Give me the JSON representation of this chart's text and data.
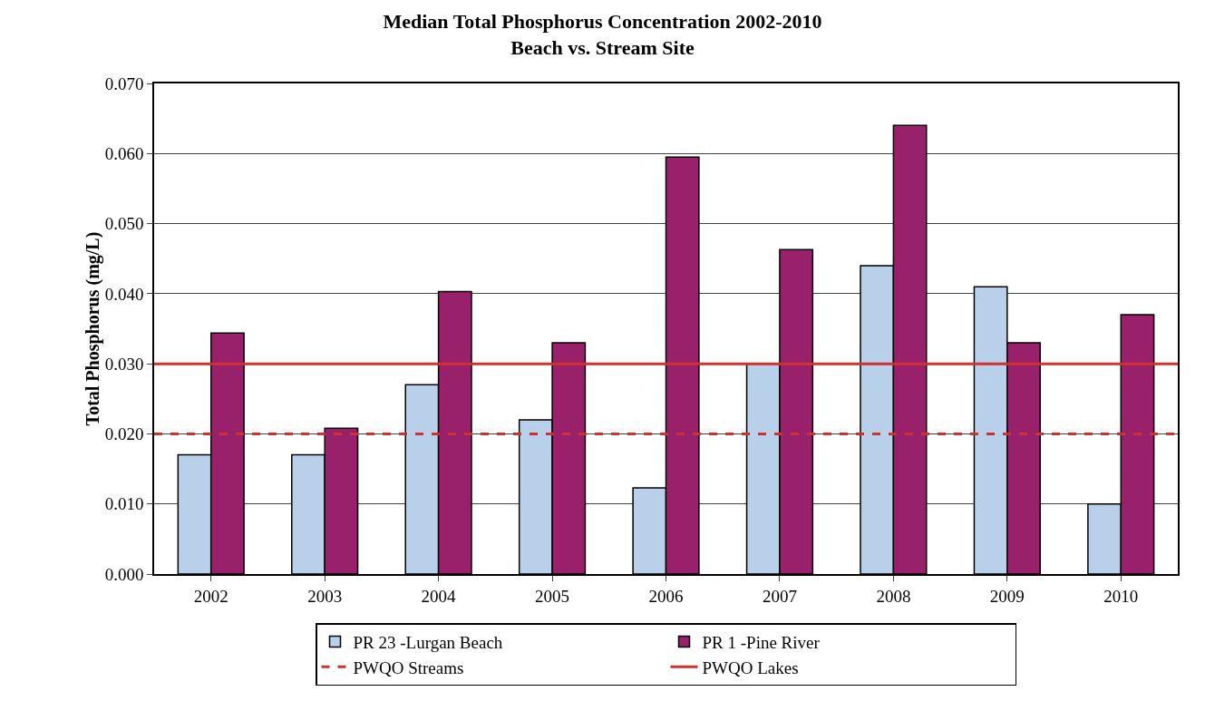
{
  "chart_data": {
    "type": "bar",
    "title": "Median Total Phosphorus Concentration 2002-2010\nBeach vs. Stream Site",
    "ylabel": "Total Phosphorus (mg/L)",
    "categories": [
      "2002",
      "2003",
      "2004",
      "2005",
      "2006",
      "2007",
      "2008",
      "2009",
      "2010"
    ],
    "series": [
      {
        "name": "PR 23 -Lurgan Beach",
        "color": "#b8d0ea",
        "values": [
          0.017,
          0.017,
          0.027,
          0.022,
          0.0123,
          0.03,
          0.044,
          0.041,
          0.01
        ]
      },
      {
        "name": "PR 1 -Pine River",
        "color": "#99206a",
        "values": [
          0.0344,
          0.0208,
          0.0403,
          0.033,
          0.0595,
          0.0463,
          0.064,
          0.033,
          0.037
        ]
      }
    ],
    "ref_lines": [
      {
        "axis": "y",
        "value": 0.02,
        "label": "PWQO Streams",
        "color": "#d0312d",
        "line_style": "dashed"
      },
      {
        "axis": "y",
        "value": 0.03,
        "label": "PWQO Lakes",
        "color": "#d0312d",
        "line_style": "solid"
      }
    ],
    "ylim": [
      0,
      0.07
    ],
    "yticks": [
      {
        "value": 0,
        "label": "0.000"
      },
      {
        "value": 0.01,
        "label": "0.010"
      },
      {
        "value": 0.02,
        "label": "0.020"
      },
      {
        "value": 0.03,
        "label": "0.030"
      },
      {
        "value": 0.04,
        "label": "0.040"
      },
      {
        "value": 0.05,
        "label": "0.050"
      },
      {
        "value": 0.06,
        "label": "0.060"
      },
      {
        "value": 0.07,
        "label": "0.070"
      }
    ],
    "grid": "y",
    "legend": "bottom"
  }
}
